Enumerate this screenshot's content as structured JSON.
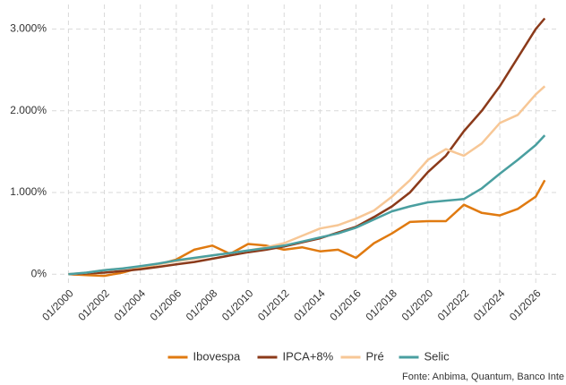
{
  "chart_data": {
    "type": "line",
    "x": [
      "01/2000",
      "01/2001",
      "01/2002",
      "01/2003",
      "01/2004",
      "01/2005",
      "01/2006",
      "01/2007",
      "01/2008",
      "01/2009",
      "01/2010",
      "01/2011",
      "01/2012",
      "01/2013",
      "01/2014",
      "01/2015",
      "01/2016",
      "01/2017",
      "01/2018",
      "01/2019",
      "01/2020",
      "01/2021",
      "01/2022",
      "01/2023",
      "01/2024",
      "01/2025",
      "01/2026",
      "07/2026"
    ],
    "series": [
      {
        "name": "Ibovespa",
        "color": "#e07a10",
        "values": [
          0,
          -10,
          -20,
          20,
          80,
          120,
          180,
          300,
          350,
          250,
          370,
          350,
          300,
          330,
          280,
          300,
          200,
          380,
          500,
          640,
          650,
          650,
          850,
          750,
          720,
          800,
          950,
          1150
        ]
      },
      {
        "name": "IPCA+8%",
        "color": "#8b3a1a",
        "values": [
          0,
          10,
          20,
          40,
          60,
          90,
          120,
          150,
          190,
          230,
          270,
          300,
          340,
          390,
          440,
          510,
          580,
          700,
          830,
          1000,
          1250,
          1450,
          1750,
          2000,
          2300,
          2650,
          3000,
          3130
        ]
      },
      {
        "name": "Pré",
        "color": "#f7c796",
        "values": [
          0,
          20,
          50,
          70,
          90,
          120,
          160,
          190,
          230,
          260,
          290,
          330,
          380,
          470,
          560,
          600,
          680,
          780,
          950,
          1150,
          1400,
          1530,
          1450,
          1600,
          1850,
          1950,
          2200,
          2300
        ]
      },
      {
        "name": "Selic",
        "color": "#4a9fa0",
        "values": [
          0,
          20,
          50,
          70,
          100,
          130,
          170,
          200,
          230,
          260,
          290,
          320,
          350,
          400,
          450,
          500,
          570,
          670,
          770,
          830,
          880,
          900,
          920,
          1050,
          1230,
          1400,
          1580,
          1700
        ]
      }
    ],
    "xlim": [
      "02/1999",
      "05/2027"
    ],
    "xticks": [
      "01/2000",
      "01/2002",
      "01/2004",
      "01/2006",
      "01/2008",
      "01/2010",
      "01/2012",
      "01/2014",
      "01/2016",
      "01/2018",
      "01/2020",
      "01/2022",
      "01/2024",
      "01/2026"
    ],
    "ylim": [
      -150,
      3300
    ],
    "yticks": [
      {
        "value": 0,
        "label": "0%"
      },
      {
        "value": 1000,
        "label": "1.000%"
      },
      {
        "value": 2000,
        "label": "2.000%"
      },
      {
        "value": 3000,
        "label": "3.000%"
      }
    ],
    "grid": true,
    "legend": "bottom",
    "source": "Fonte: Anbima, Quantum, Banco Inte"
  }
}
